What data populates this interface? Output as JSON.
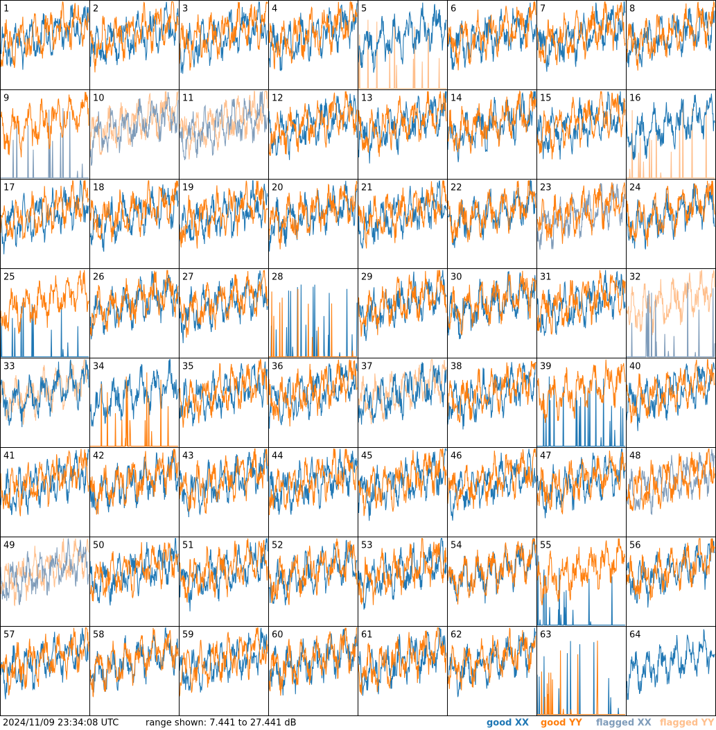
{
  "panels": [
    {
      "label": "1",
      "xx": "good",
      "yy": "good"
    },
    {
      "label": "2",
      "xx": "good",
      "yy": "good"
    },
    {
      "label": "3",
      "xx": "good",
      "yy": "good"
    },
    {
      "label": "4",
      "xx": "good",
      "yy": "good"
    },
    {
      "label": "5",
      "xx": "good",
      "yy": "flagged-spikes"
    },
    {
      "label": "6",
      "xx": "good",
      "yy": "good"
    },
    {
      "label": "7",
      "xx": "good",
      "yy": "good"
    },
    {
      "label": "8",
      "xx": "good",
      "yy": "good"
    },
    {
      "label": "9",
      "xx": "flagged-spikes",
      "yy": "good"
    },
    {
      "label": "10",
      "xx": "flagged",
      "yy": "flagged"
    },
    {
      "label": "11",
      "xx": "flagged",
      "yy": "flagged"
    },
    {
      "label": "12",
      "xx": "good",
      "yy": "good"
    },
    {
      "label": "13",
      "xx": "good",
      "yy": "good"
    },
    {
      "label": "14",
      "xx": "good",
      "yy": "good"
    },
    {
      "label": "15",
      "xx": "good",
      "yy": "good"
    },
    {
      "label": "16",
      "xx": "good",
      "yy": "flagged-spikes"
    },
    {
      "label": "17",
      "xx": "good",
      "yy": "good"
    },
    {
      "label": "18",
      "xx": "good",
      "yy": "good"
    },
    {
      "label": "19",
      "xx": "good",
      "yy": "good"
    },
    {
      "label": "20",
      "xx": "good",
      "yy": "good"
    },
    {
      "label": "21",
      "xx": "good",
      "yy": "good"
    },
    {
      "label": "22",
      "xx": "good",
      "yy": "good"
    },
    {
      "label": "23",
      "xx": "flagged",
      "yy": "good"
    },
    {
      "label": "24",
      "xx": "good",
      "yy": "good"
    },
    {
      "label": "25",
      "xx": "good-spikes",
      "yy": "good"
    },
    {
      "label": "26",
      "xx": "good",
      "yy": "good"
    },
    {
      "label": "27",
      "xx": "good",
      "yy": "good"
    },
    {
      "label": "28",
      "xx": "good-spikes",
      "yy": "good-spikes"
    },
    {
      "label": "29",
      "xx": "good",
      "yy": "good"
    },
    {
      "label": "30",
      "xx": "good",
      "yy": "good"
    },
    {
      "label": "31",
      "xx": "good",
      "yy": "good"
    },
    {
      "label": "32",
      "xx": "flagged-spikes",
      "yy": "flagged"
    },
    {
      "label": "33",
      "xx": "good",
      "yy": "flagged"
    },
    {
      "label": "34",
      "xx": "good",
      "yy": "good-spikes"
    },
    {
      "label": "35",
      "xx": "good",
      "yy": "good"
    },
    {
      "label": "36",
      "xx": "good",
      "yy": "good"
    },
    {
      "label": "37",
      "xx": "good",
      "yy": "flagged"
    },
    {
      "label": "38",
      "xx": "good",
      "yy": "good"
    },
    {
      "label": "39",
      "xx": "good-spikes",
      "yy": "good"
    },
    {
      "label": "40",
      "xx": "good",
      "yy": "good"
    },
    {
      "label": "41",
      "xx": "good",
      "yy": "good"
    },
    {
      "label": "42",
      "xx": "good",
      "yy": "good"
    },
    {
      "label": "43",
      "xx": "good",
      "yy": "good"
    },
    {
      "label": "44",
      "xx": "good",
      "yy": "good"
    },
    {
      "label": "45",
      "xx": "good",
      "yy": "good"
    },
    {
      "label": "46",
      "xx": "good",
      "yy": "good"
    },
    {
      "label": "47",
      "xx": "good",
      "yy": "good"
    },
    {
      "label": "48",
      "xx": "flagged",
      "yy": "good"
    },
    {
      "label": "49",
      "xx": "flagged",
      "yy": "flagged"
    },
    {
      "label": "50",
      "xx": "good",
      "yy": "good"
    },
    {
      "label": "51",
      "xx": "good",
      "yy": "good"
    },
    {
      "label": "52",
      "xx": "good",
      "yy": "good"
    },
    {
      "label": "53",
      "xx": "good",
      "yy": "good"
    },
    {
      "label": "54",
      "xx": "good",
      "yy": "good"
    },
    {
      "label": "55",
      "xx": "good-spikes",
      "yy": "good"
    },
    {
      "label": "56",
      "xx": "good",
      "yy": "good"
    },
    {
      "label": "57",
      "xx": "good",
      "yy": "good"
    },
    {
      "label": "58",
      "xx": "good",
      "yy": "good"
    },
    {
      "label": "59",
      "xx": "good",
      "yy": "good"
    },
    {
      "label": "60",
      "xx": "good",
      "yy": "good"
    },
    {
      "label": "61",
      "xx": "good",
      "yy": "good"
    },
    {
      "label": "62",
      "xx": "good",
      "yy": "good"
    },
    {
      "label": "63",
      "xx": "good-spikes",
      "yy": "good-spikes"
    },
    {
      "label": "64",
      "xx": "good",
      "yy": "none"
    }
  ],
  "footer": {
    "timestamp": "2024/11/09 23:34:08 UTC",
    "range": "range shown: 7.441 to 27.441 dB"
  },
  "legend": [
    {
      "label": "good XX",
      "color": "#1f77b4"
    },
    {
      "label": "good YY",
      "color": "#ff7f0e"
    },
    {
      "label": "flagged XX",
      "color": "#7f9cba"
    },
    {
      "label": "flagged YY",
      "color": "#ffbf8c"
    }
  ]
}
